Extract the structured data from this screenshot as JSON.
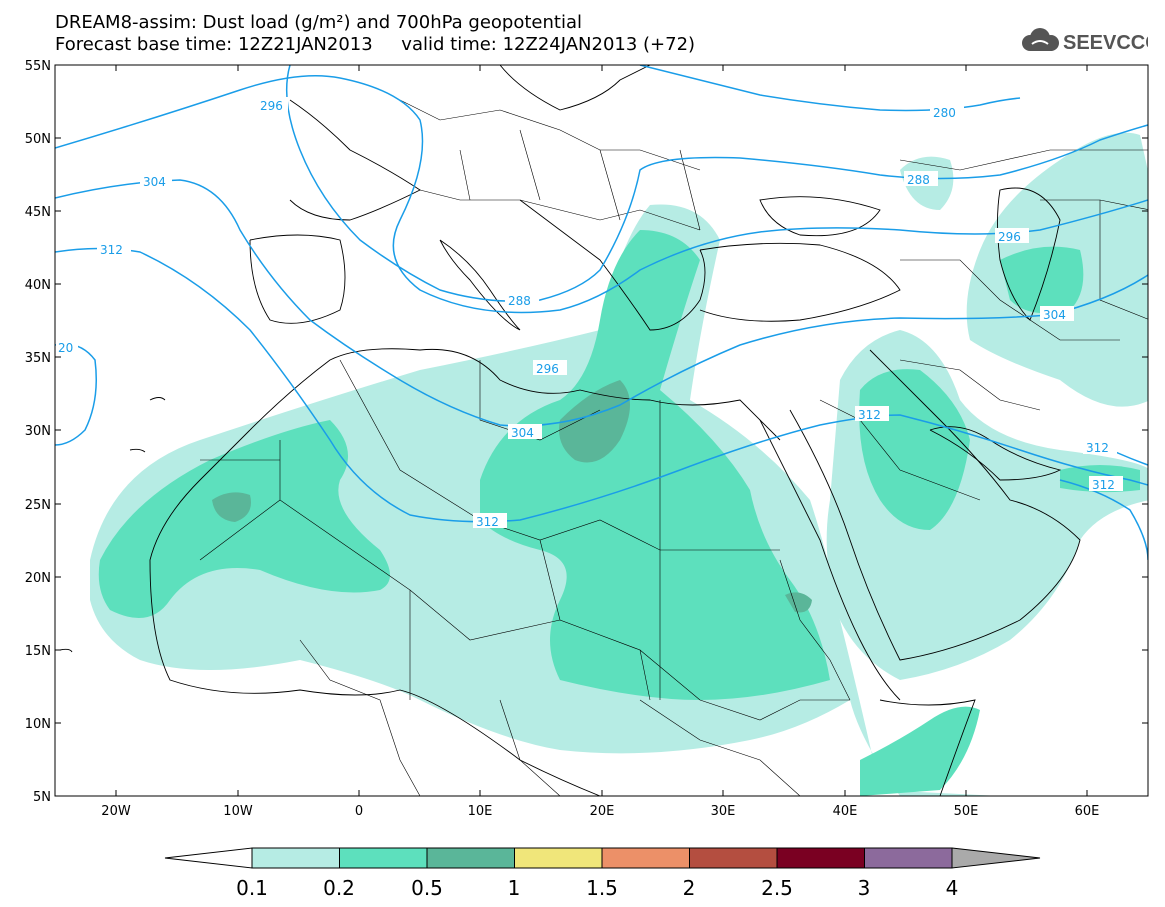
{
  "title": {
    "line1": "DREAM8-assim: Dust load (g/m²) and 700hPa geopotential",
    "line2": "Forecast base time: 12Z21JAN2013     valid time: 12Z24JAN2013 (+72)"
  },
  "logo": {
    "text": "SEEVCCC",
    "icon": "cloud-icon"
  },
  "axes": {
    "lat_labels": [
      "55N",
      "50N",
      "45N",
      "40N",
      "35N",
      "30N",
      "25N",
      "20N",
      "15N",
      "10N",
      "5N"
    ],
    "lon_labels": [
      "20W",
      "10W",
      "0",
      "10E",
      "20E",
      "30E",
      "40E",
      "50E",
      "60E"
    ]
  },
  "contours": {
    "color": "#1a9de8",
    "labels": [
      "296",
      "280",
      "304",
      "288",
      "312",
      "296",
      "288",
      "296",
      "304",
      "312",
      "304",
      "312",
      "312",
      "312",
      "20"
    ]
  },
  "colorbar": {
    "labels": [
      "0.1",
      "0.2",
      "0.5",
      "1",
      "1.5",
      "2",
      "2.5",
      "3",
      "4"
    ],
    "colors": [
      "#ffffff",
      "#b6ece4",
      "#5de0bd",
      "#5ab699",
      "#f0e67a",
      "#ec9068",
      "#b44e40",
      "#7a0022",
      "#8c6a9c",
      "#aaaaaa"
    ]
  },
  "shading": {
    "light": "#b6ece4",
    "medium": "#5de0bd",
    "dark": "#5ab699"
  }
}
